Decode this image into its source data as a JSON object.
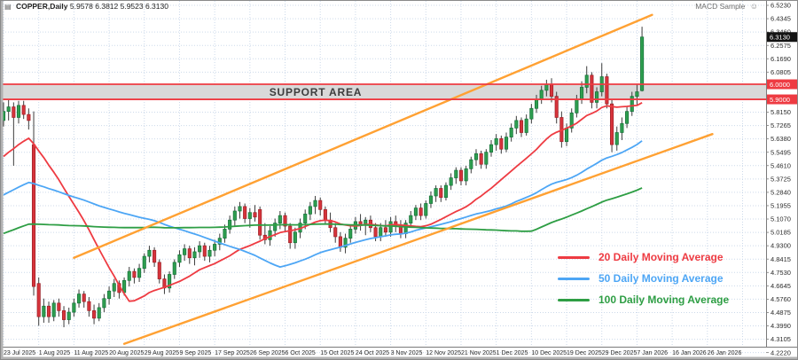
{
  "window": {
    "chart_icon": "▤",
    "title_symbol": "COPPER,Daily",
    "title_ohlc": "5.9578 6.3812 5.9523 6.3130",
    "ea_name": "MACD Sample",
    "ea_smiley": "☺"
  },
  "support_area": {
    "label": "SUPPORT AREA",
    "top_price": 6.0,
    "bottom_price": 5.9,
    "top_tag": "6.0000",
    "bottom_tag": "5.9000",
    "band_color": "#d9d9d9",
    "border_color": "#ee3b42"
  },
  "current_price": {
    "tag_text": "6.3130",
    "price": 6.313,
    "tag_bg": "#141414",
    "tag_fg": "#ffffff"
  },
  "legend": [
    {
      "label": "20 Daily Moving Average",
      "color": "#ee3b42"
    },
    {
      "label": "50 Daily Moving Average",
      "color": "#4da6f5"
    },
    {
      "label": "100 Daily Moving Average",
      "color": "#2e9e44"
    }
  ],
  "chart_data": {
    "type": "candlestick",
    "title": "COPPER,Daily",
    "symbol": "COPPER",
    "timeframe": "Daily",
    "price_axis": {
      "top_price": 6.5524,
      "bottom_price": 4.2611,
      "labels": [
        "6.5230",
        "6.4345",
        "6.3460",
        "6.2575",
        "6.1690",
        "6.0805",
        "5.9920",
        "5.9035",
        "5.8150",
        "5.7265",
        "5.6380",
        "5.5495",
        "5.4610",
        "5.3725",
        "5.2840",
        "5.1955",
        "5.1070",
        "5.0185",
        "4.9300",
        "4.8415",
        "4.7530",
        "4.6645",
        "4.5760",
        "4.4875",
        "4.3990",
        "4.3105",
        "4.2220"
      ]
    },
    "time_axis": {
      "bars_per_label": 7,
      "labels": [
        "23 Jul 2025",
        "1 Aug 2025",
        "11 Aug 2025",
        "20 Aug 2025",
        "29 Aug 2025",
        "9 Sep 2025",
        "17 Sep 2025",
        "26 Sep 2025",
        "6 Oct 2025",
        "15 Oct 2025",
        "24 Oct 2025",
        "3 Nov 2025",
        "12 Nov 2025",
        "21 Nov 2025",
        "1 Dec 2025",
        "10 Dec 2025",
        "19 Dec 2025",
        "29 Dec 2025",
        "7 Jan 2026",
        "16 Jan 2026",
        "26 Jan 2026"
      ]
    },
    "candles": [
      [
        5.76,
        5.88,
        5.72,
        5.82
      ],
      [
        5.82,
        5.9,
        5.76,
        5.85
      ],
      [
        5.85,
        5.88,
        5.46,
        5.78
      ],
      [
        5.78,
        5.89,
        5.74,
        5.86
      ],
      [
        5.86,
        5.89,
        5.77,
        5.8
      ],
      [
        5.8,
        5.84,
        5.7,
        5.76
      ],
      [
        5.6,
        5.82,
        4.6,
        4.66
      ],
      [
        4.68,
        4.72,
        4.4,
        4.46
      ],
      [
        4.46,
        4.58,
        4.42,
        4.53
      ],
      [
        4.53,
        4.56,
        4.42,
        4.46
      ],
      [
        4.46,
        4.57,
        4.43,
        4.55
      ],
      [
        4.55,
        4.58,
        4.46,
        4.5
      ],
      [
        4.5,
        4.53,
        4.39,
        4.44
      ],
      [
        4.44,
        4.52,
        4.41,
        4.49
      ],
      [
        4.49,
        4.58,
        4.46,
        4.55
      ],
      [
        4.55,
        4.64,
        4.52,
        4.61
      ],
      [
        4.61,
        4.63,
        4.52,
        4.56
      ],
      [
        4.56,
        4.59,
        4.46,
        4.5
      ],
      [
        4.5,
        4.54,
        4.41,
        4.45
      ],
      [
        4.45,
        4.55,
        4.43,
        4.52
      ],
      [
        4.52,
        4.61,
        4.49,
        4.58
      ],
      [
        4.58,
        4.66,
        4.54,
        4.63
      ],
      [
        4.63,
        4.71,
        4.59,
        4.68
      ],
      [
        4.68,
        4.7,
        4.58,
        4.62
      ],
      [
        4.62,
        4.72,
        4.6,
        4.7
      ],
      [
        4.7,
        4.79,
        4.66,
        4.76
      ],
      [
        4.76,
        4.78,
        4.68,
        4.72
      ],
      [
        4.72,
        4.81,
        4.69,
        4.78
      ],
      [
        4.78,
        4.88,
        4.75,
        4.86
      ],
      [
        4.86,
        4.93,
        4.82,
        4.9
      ],
      [
        4.9,
        4.92,
        4.79,
        4.82
      ],
      [
        4.82,
        4.84,
        4.68,
        4.71
      ],
      [
        4.71,
        4.74,
        4.61,
        4.65
      ],
      [
        4.65,
        4.76,
        4.62,
        4.74
      ],
      [
        4.74,
        4.84,
        4.71,
        4.82
      ],
      [
        4.82,
        4.9,
        4.79,
        4.87
      ],
      [
        4.87,
        4.94,
        4.83,
        4.91
      ],
      [
        4.91,
        4.93,
        4.81,
        4.85
      ],
      [
        4.85,
        4.92,
        4.8,
        4.89
      ],
      [
        4.89,
        4.96,
        4.85,
        4.93
      ],
      [
        4.93,
        4.95,
        4.83,
        4.86
      ],
      [
        4.86,
        4.93,
        4.82,
        4.9
      ],
      [
        4.9,
        4.97,
        4.86,
        4.94
      ],
      [
        4.94,
        5.01,
        4.9,
        4.98
      ],
      [
        4.98,
        5.07,
        4.95,
        5.04
      ],
      [
        5.04,
        5.13,
        5.01,
        5.1
      ],
      [
        5.1,
        5.19,
        5.06,
        5.16
      ],
      [
        5.16,
        5.22,
        5.11,
        5.19
      ],
      [
        5.19,
        5.21,
        5.08,
        5.11
      ],
      [
        5.11,
        5.18,
        5.05,
        5.15
      ],
      [
        5.15,
        5.2,
        5.09,
        5.12
      ],
      [
        5.17,
        5.19,
        4.97,
        5.0
      ],
      [
        5.0,
        5.08,
        4.94,
        4.97
      ],
      [
        4.97,
        5.06,
        4.93,
        5.03
      ],
      [
        5.03,
        5.11,
        4.99,
        5.08
      ],
      [
        5.08,
        5.16,
        5.04,
        5.13
      ],
      [
        5.13,
        5.15,
        5.02,
        5.06
      ],
      [
        5.06,
        5.08,
        4.91,
        4.95
      ],
      [
        4.95,
        5.05,
        4.91,
        5.02
      ],
      [
        5.02,
        5.11,
        4.98,
        5.08
      ],
      [
        5.08,
        5.17,
        5.04,
        5.14
      ],
      [
        5.14,
        5.22,
        5.1,
        5.19
      ],
      [
        5.19,
        5.26,
        5.14,
        5.23
      ],
      [
        5.23,
        5.25,
        5.13,
        5.17
      ],
      [
        5.17,
        5.19,
        5.07,
        5.1
      ],
      [
        5.1,
        5.15,
        5.02,
        5.05
      ],
      [
        5.05,
        5.08,
        4.95,
        4.99
      ],
      [
        4.99,
        5.02,
        4.89,
        4.92
      ],
      [
        4.92,
        5.01,
        4.88,
        4.98
      ],
      [
        4.98,
        5.07,
        4.95,
        5.04
      ],
      [
        5.04,
        5.12,
        5.01,
        5.09
      ],
      [
        5.09,
        5.14,
        5.03,
        5.07
      ],
      [
        5.07,
        5.12,
        5.0,
        5.1
      ],
      [
        5.1,
        5.13,
        5.02,
        5.05
      ],
      [
        5.05,
        5.08,
        4.96,
        4.99
      ],
      [
        4.99,
        5.08,
        4.96,
        5.05
      ],
      [
        5.05,
        5.1,
        4.99,
        5.02
      ],
      [
        5.02,
        5.12,
        4.99,
        5.09
      ],
      [
        5.09,
        5.13,
        5.02,
        5.06
      ],
      [
        5.06,
        5.1,
        4.98,
        5.01
      ],
      [
        5.01,
        5.1,
        4.98,
        5.08
      ],
      [
        5.08,
        5.16,
        5.05,
        5.13
      ],
      [
        5.13,
        5.2,
        5.1,
        5.18
      ],
      [
        5.18,
        5.21,
        5.1,
        5.13
      ],
      [
        5.13,
        5.23,
        5.11,
        5.21
      ],
      [
        5.21,
        5.29,
        5.18,
        5.26
      ],
      [
        5.26,
        5.33,
        5.22,
        5.31
      ],
      [
        5.31,
        5.33,
        5.22,
        5.25
      ],
      [
        5.25,
        5.35,
        5.23,
        5.33
      ],
      [
        5.33,
        5.41,
        5.3,
        5.38
      ],
      [
        5.38,
        5.45,
        5.34,
        5.43
      ],
      [
        5.43,
        5.45,
        5.33,
        5.36
      ],
      [
        5.36,
        5.46,
        5.33,
        5.44
      ],
      [
        5.44,
        5.52,
        5.41,
        5.5
      ],
      [
        5.5,
        5.57,
        5.46,
        5.54
      ],
      [
        5.54,
        5.56,
        5.44,
        5.47
      ],
      [
        5.47,
        5.57,
        5.44,
        5.55
      ],
      [
        5.55,
        5.63,
        5.52,
        5.6
      ],
      [
        5.6,
        5.67,
        5.56,
        5.64
      ],
      [
        5.64,
        5.66,
        5.54,
        5.57
      ],
      [
        5.57,
        5.68,
        5.55,
        5.65
      ],
      [
        5.65,
        5.74,
        5.62,
        5.71
      ],
      [
        5.71,
        5.79,
        5.67,
        5.76
      ],
      [
        5.76,
        5.78,
        5.65,
        5.68
      ],
      [
        5.68,
        5.8,
        5.66,
        5.77
      ],
      [
        5.77,
        5.87,
        5.74,
        5.84
      ],
      [
        5.84,
        5.93,
        5.81,
        5.9
      ],
      [
        5.9,
        5.99,
        5.87,
        5.96
      ],
      [
        5.96,
        6.03,
        5.92,
        6.0
      ],
      [
        6.0,
        6.04,
        5.88,
        5.92
      ],
      [
        5.92,
        5.95,
        5.74,
        5.78
      ],
      [
        5.78,
        5.82,
        5.58,
        5.62
      ],
      [
        5.62,
        5.74,
        5.59,
        5.71
      ],
      [
        5.71,
        5.84,
        5.68,
        5.81
      ],
      [
        5.81,
        5.93,
        5.78,
        5.9
      ],
      [
        5.9,
        6.02,
        5.87,
        5.98
      ],
      [
        5.98,
        6.12,
        5.94,
        6.06
      ],
      [
        6.06,
        6.08,
        5.84,
        5.88
      ],
      [
        5.88,
        5.98,
        5.84,
        5.95
      ],
      [
        5.95,
        6.14,
        5.92,
        6.05
      ],
      [
        6.05,
        6.07,
        5.84,
        5.87
      ],
      [
        5.87,
        5.9,
        5.55,
        5.6
      ],
      [
        5.6,
        5.72,
        5.56,
        5.68
      ],
      [
        5.68,
        5.78,
        5.63,
        5.74
      ],
      [
        5.74,
        5.85,
        5.71,
        5.82
      ],
      [
        5.82,
        5.95,
        5.79,
        5.92
      ],
      [
        5.92,
        6.0,
        5.86,
        5.95
      ],
      [
        5.9578,
        6.3812,
        5.9523,
        6.313
      ]
    ],
    "prehistory_segments": [
      [
        20,
        4.55,
        4.7
      ],
      [
        20,
        4.72,
        4.86
      ],
      [
        20,
        4.86,
        5.05
      ],
      [
        15,
        5.05,
        5.16
      ],
      [
        15,
        5.16,
        5.45
      ],
      [
        10,
        5.48,
        5.78
      ]
    ],
    "moving_averages": [
      {
        "period": 20,
        "name": "20 Daily Moving Average",
        "color": "#ee3b42"
      },
      {
        "period": 50,
        "name": "50 Daily Moving Average",
        "color": "#4da6f5"
      },
      {
        "period": 100,
        "name": "100 Daily Moving Average",
        "color": "#2e9e44"
      }
    ],
    "trendlines": [
      {
        "name": "channel-upper",
        "color": "#ffa133",
        "b1": 14,
        "p1": 4.85,
        "b2": 129,
        "p2": 6.46
      },
      {
        "name": "channel-lower",
        "color": "#ffa133",
        "b1": 24,
        "p1": 4.28,
        "b2": 141,
        "p2": 5.67
      }
    ],
    "colors": {
      "bull": "#2e9e4f",
      "bull_border": "#17713a",
      "bear": "#d6333b",
      "bear_border": "#9c2127",
      "wick": "#3c3c3c",
      "grid": "#ccd9ea",
      "axis_text": "#2b2b2b",
      "bg": "#ffffff",
      "frame": "#b2b2b2",
      "axis_line": "#7a7a7a"
    }
  }
}
